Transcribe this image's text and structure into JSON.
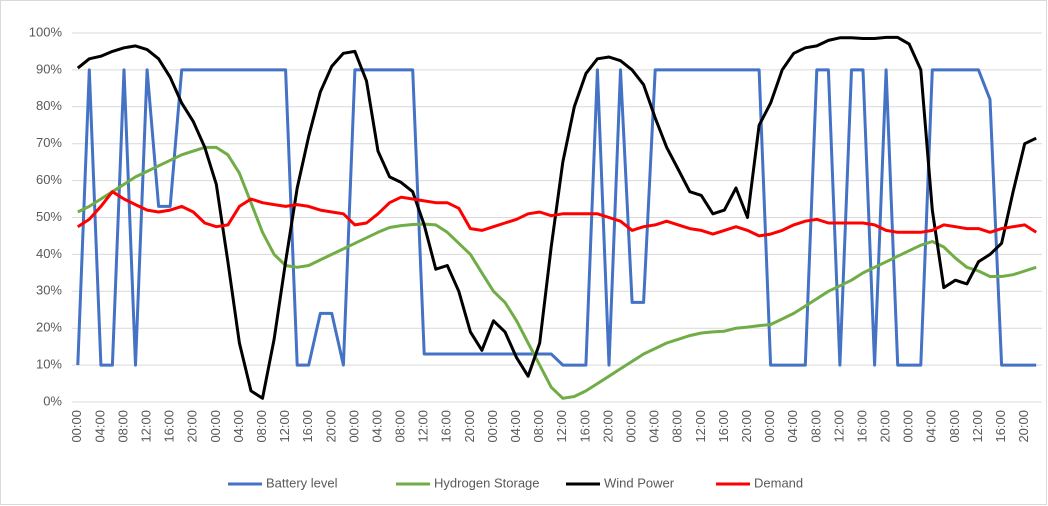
{
  "chart_data": {
    "type": "line",
    "categories": [
      "00:00",
      null,
      "04:00",
      null,
      "08:00",
      null,
      "12:00",
      null,
      "16:00",
      null,
      "20:00",
      null,
      "00:00",
      null,
      "04:00",
      null,
      "08:00",
      null,
      "12:00",
      null,
      "16:00",
      null,
      "20:00",
      null,
      "00:00",
      null,
      "04:00",
      null,
      "08:00",
      null,
      "12:00",
      null,
      "16:00",
      null,
      "20:00",
      null,
      "00:00",
      null,
      "04:00",
      null,
      "08:00",
      null,
      "12:00",
      null,
      "16:00",
      null,
      "20:00",
      null,
      "00:00",
      null,
      "04:00",
      null,
      "08:00",
      null,
      "12:00",
      null,
      "16:00",
      null,
      "20:00",
      null,
      "00:00",
      null,
      "04:00",
      null,
      "08:00",
      null,
      "12:00",
      null,
      "16:00",
      null,
      "20:00",
      null,
      "00:00",
      null,
      "04:00",
      null,
      "08:00",
      null,
      "12:00",
      null,
      "16:00",
      null,
      "20:00",
      null
    ],
    "series": [
      {
        "name": "Battery level",
        "color": "#4472c4",
        "values": [
          10,
          90,
          10,
          10,
          90,
          10,
          90,
          53,
          53,
          90,
          90,
          90,
          90,
          90,
          90,
          90,
          90,
          90,
          90,
          10,
          10,
          24,
          24,
          10,
          90,
          90,
          90,
          90,
          90,
          90,
          13,
          13,
          13,
          13,
          13,
          13,
          13,
          13,
          13,
          13,
          13,
          13,
          10,
          10,
          10,
          90,
          10,
          90,
          27,
          27,
          90,
          90,
          90,
          90,
          90,
          90,
          90,
          90,
          90,
          90,
          10,
          10,
          10,
          10,
          90,
          90,
          10,
          90,
          90,
          10,
          90,
          10,
          10,
          10,
          90,
          90,
          90,
          90,
          90,
          82,
          10,
          10,
          10,
          10
        ]
      },
      {
        "name": "Hydrogen Storage",
        "color": "#70ad47",
        "values": [
          51.5,
          53,
          55,
          57,
          59,
          61,
          62.5,
          64,
          65.5,
          67,
          68,
          69,
          69,
          67,
          62,
          54,
          46,
          40,
          37,
          36.5,
          37,
          38.5,
          40,
          41.5,
          43,
          44.5,
          46,
          47.3,
          47.8,
          48.1,
          48.2,
          48,
          46,
          43,
          40,
          35,
          30,
          27,
          22,
          16,
          10,
          4,
          1,
          1.5,
          3,
          5,
          7,
          9,
          11,
          13,
          14.5,
          16,
          17,
          18,
          18.7,
          19,
          19.2,
          20,
          20.3,
          20.7,
          21,
          22.5,
          24,
          26,
          28,
          30,
          31.5,
          33,
          35,
          36.5,
          38,
          39.5,
          41,
          42.5,
          43.5,
          42,
          39,
          36.5,
          35.5,
          34,
          34,
          34.5,
          35.5,
          36.5
        ]
      },
      {
        "name": "Wind Power",
        "color": "#000000",
        "values": [
          90.5,
          93,
          93.7,
          95,
          96,
          96.5,
          95.5,
          93,
          88,
          81,
          76,
          69,
          59,
          38,
          16,
          3,
          1,
          17,
          38,
          58,
          72,
          84,
          91,
          94.5,
          95,
          87,
          68,
          61,
          59.5,
          57,
          48,
          36,
          37,
          30,
          19,
          14,
          22,
          19,
          12,
          7,
          16,
          42,
          65,
          80,
          89,
          93,
          93.5,
          92.5,
          90,
          86,
          77,
          69,
          63,
          57,
          56,
          51,
          52,
          58,
          50,
          75,
          81,
          90,
          94.5,
          96,
          96.5,
          98,
          98.7,
          98.7,
          98.5,
          98.5,
          98.8,
          98.8,
          97,
          90,
          52,
          31,
          33,
          32,
          38,
          40,
          43,
          57,
          70,
          71.5
        ]
      },
      {
        "name": "Demand",
        "color": "#ff0000",
        "values": [
          47.5,
          49.5,
          53,
          57,
          55,
          53.5,
          52,
          51.5,
          52,
          53,
          51.5,
          48.5,
          47.5,
          48,
          53,
          55,
          54,
          53.5,
          53,
          53.5,
          53,
          52,
          51.5,
          51,
          48,
          48.5,
          51,
          54,
          55.5,
          55,
          54.5,
          54,
          54,
          52.5,
          47,
          46.5,
          47.5,
          48.5,
          49.5,
          51,
          51.5,
          50.5,
          51,
          51,
          51,
          51,
          50,
          49,
          46.5,
          47.5,
          48,
          49,
          48,
          47,
          46.5,
          45.5,
          46.5,
          47.5,
          46.5,
          45,
          45.5,
          46.5,
          48,
          49,
          49.5,
          48.5,
          48.5,
          48.5,
          48.5,
          48,
          46.5,
          46,
          46,
          46,
          46.5,
          48,
          47.5,
          47,
          47,
          46,
          47,
          47.5,
          48,
          46
        ]
      }
    ],
    "ylim": [
      0,
      100
    ],
    "yticks": [
      {
        "value": 0,
        "label": "0%"
      },
      {
        "value": 10,
        "label": "10%"
      },
      {
        "value": 20,
        "label": "20%"
      },
      {
        "value": 30,
        "label": "30%"
      },
      {
        "value": 40,
        "label": "40%"
      },
      {
        "value": 50,
        "label": "50%"
      },
      {
        "value": 60,
        "label": "60%"
      },
      {
        "value": 70,
        "label": "70%"
      },
      {
        "value": 80,
        "label": "80%"
      },
      {
        "value": 90,
        "label": "90%"
      },
      {
        "value": 100,
        "label": "100%"
      }
    ],
    "grid": true,
    "legend": "bottom"
  }
}
